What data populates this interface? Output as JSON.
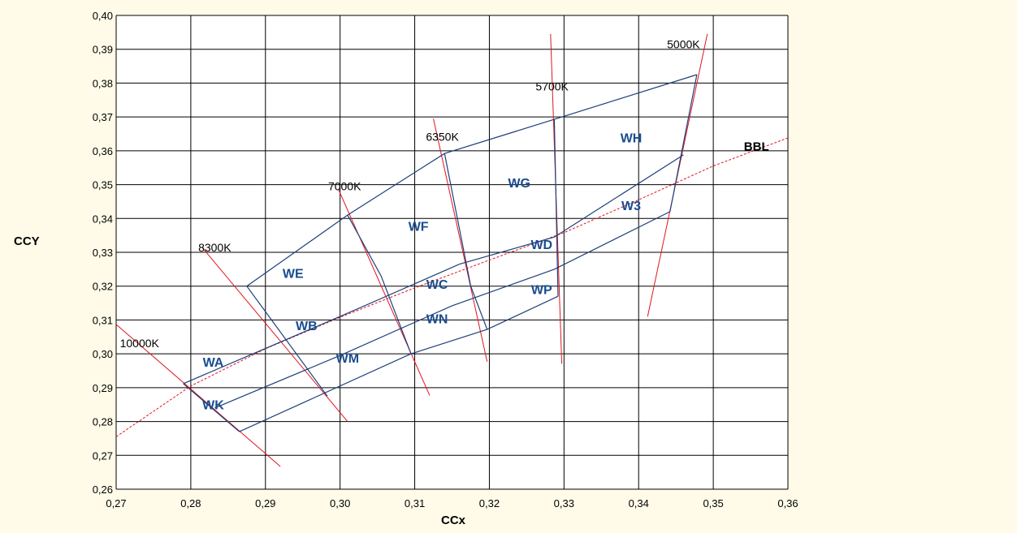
{
  "chart_data": {
    "type": "scatter",
    "xlabel": "CCx",
    "ylabel": "CCY",
    "xlim": [
      0.27,
      0.36
    ],
    "ylim": [
      0.26,
      0.4
    ],
    "grid": true,
    "x_ticks": [
      {
        "value": 0.27,
        "label": "0,27"
      },
      {
        "value": 0.28,
        "label": "0,28"
      },
      {
        "value": 0.29,
        "label": "0,29"
      },
      {
        "value": 0.3,
        "label": "0,30"
      },
      {
        "value": 0.31,
        "label": "0,31"
      },
      {
        "value": 0.32,
        "label": "0,32"
      },
      {
        "value": 0.33,
        "label": "0,33"
      },
      {
        "value": 0.34,
        "label": "0,34"
      },
      {
        "value": 0.35,
        "label": "0,35"
      },
      {
        "value": 0.36,
        "label": "0,36"
      }
    ],
    "y_ticks": [
      {
        "value": 0.26,
        "label": "0,26"
      },
      {
        "value": 0.27,
        "label": "0,27"
      },
      {
        "value": 0.28,
        "label": "0,28"
      },
      {
        "value": 0.29,
        "label": "0,29"
      },
      {
        "value": 0.3,
        "label": "0,30"
      },
      {
        "value": 0.31,
        "label": "0,31"
      },
      {
        "value": 0.32,
        "label": "0,32"
      },
      {
        "value": 0.33,
        "label": "0,33"
      },
      {
        "value": 0.34,
        "label": "0,34"
      },
      {
        "value": 0.35,
        "label": "0,35"
      },
      {
        "value": 0.36,
        "label": "0,36"
      },
      {
        "value": 0.37,
        "label": "0,37"
      },
      {
        "value": 0.38,
        "label": "0,38"
      },
      {
        "value": 0.39,
        "label": "0,39"
      },
      {
        "value": 0.4,
        "label": "0,40"
      }
    ],
    "colors": {
      "bins": "#1f3f7a",
      "isotherms": "#e0141e",
      "bin_text": "#1a4d8f",
      "grid": "#000000",
      "plot_bg": "#ffffff"
    },
    "bbl": {
      "label": "BBL",
      "label_at": [
        0.3541,
        0.3601
      ],
      "points": [
        [
          0.27,
          0.2755
        ],
        [
          0.28,
          0.2905
        ],
        [
          0.29,
          0.3015
        ],
        [
          0.3,
          0.3108
        ],
        [
          0.31,
          0.3195
        ],
        [
          0.32,
          0.3277
        ],
        [
          0.33,
          0.3358
        ],
        [
          0.34,
          0.3455
        ],
        [
          0.35,
          0.3555
        ],
        [
          0.36,
          0.3638
        ]
      ]
    },
    "isotherms": [
      {
        "label": "10000K",
        "label_at": [
          0.2705,
          0.3019
        ],
        "from": [
          0.27,
          0.3087
        ],
        "to": [
          0.292,
          0.2667
        ]
      },
      {
        "label": "8300K",
        "label_at": [
          0.281,
          0.3302
        ],
        "from": [
          0.2815,
          0.3315
        ],
        "to": [
          0.301,
          0.28
        ]
      },
      {
        "label": "7000K",
        "label_at": [
          0.2984,
          0.3483
        ],
        "from": [
          0.2998,
          0.3485
        ],
        "to": [
          0.312,
          0.2877
        ]
      },
      {
        "label": "6350K",
        "label_at": [
          0.3115,
          0.363
        ],
        "from": [
          0.3125,
          0.3695
        ],
        "to": [
          0.3197,
          0.2977
        ]
      },
      {
        "label": "5700K",
        "label_at": [
          0.3262,
          0.3778
        ],
        "from": [
          0.3282,
          0.3945
        ],
        "to": [
          0.3297,
          0.2971
        ]
      },
      {
        "label": "5000K",
        "label_at": [
          0.3438,
          0.3903
        ],
        "from": [
          0.3492,
          0.3945
        ],
        "to": [
          0.3412,
          0.311
        ]
      }
    ],
    "bin_lines": [
      [
        [
          0.279,
          0.2912
        ],
        [
          0.2865,
          0.277
        ]
      ],
      [
        [
          0.2875,
          0.32
        ],
        [
          0.2983,
          0.2875
        ]
      ],
      [
        [
          0.301,
          0.341
        ],
        [
          0.3055,
          0.323
        ],
        [
          0.3095,
          0.3
        ]
      ],
      [
        [
          0.314,
          0.3592
        ],
        [
          0.3175,
          0.32
        ],
        [
          0.3197,
          0.3072
        ]
      ],
      [
        [
          0.3287,
          0.3693
        ],
        [
          0.3292,
          0.317
        ]
      ],
      [
        [
          0.3478,
          0.3825
        ],
        [
          0.3442,
          0.342
        ]
      ],
      [
        [
          0.2875,
          0.32
        ],
        [
          0.301,
          0.341
        ],
        [
          0.314,
          0.3592
        ],
        [
          0.3287,
          0.3693
        ],
        [
          0.3478,
          0.3825
        ]
      ],
      [
        [
          0.279,
          0.2912
        ],
        [
          0.301,
          0.312
        ],
        [
          0.316,
          0.3265
        ],
        [
          0.3287,
          0.3345
        ],
        [
          0.346,
          0.3588
        ]
      ],
      [
        [
          0.2832,
          0.284
        ],
        [
          0.3,
          0.2995
        ],
        [
          0.315,
          0.3142
        ],
        [
          0.3287,
          0.325
        ],
        [
          0.3442,
          0.342
        ]
      ],
      [
        [
          0.2865,
          0.277
        ],
        [
          0.3095,
          0.3
        ],
        [
          0.3197,
          0.3072
        ],
        [
          0.3292,
          0.317
        ]
      ]
    ],
    "bins": [
      {
        "label": "WA",
        "at": [
          0.283,
          0.2962
        ]
      },
      {
        "label": "WK",
        "at": [
          0.283,
          0.2836
        ]
      },
      {
        "label": "WE",
        "at": [
          0.2937,
          0.3225
        ]
      },
      {
        "label": "WB",
        "at": [
          0.2955,
          0.307
        ]
      },
      {
        "label": "WM",
        "at": [
          0.301,
          0.2974
        ]
      },
      {
        "label": "WF",
        "at": [
          0.3105,
          0.3363
        ]
      },
      {
        "label": "WC",
        "at": [
          0.313,
          0.3192
        ]
      },
      {
        "label": "WN",
        "at": [
          0.313,
          0.309
        ]
      },
      {
        "label": "WG",
        "at": [
          0.324,
          0.3492
        ]
      },
      {
        "label": "WD",
        "at": [
          0.327,
          0.331
        ]
      },
      {
        "label": "WP",
        "at": [
          0.327,
          0.3177
        ]
      },
      {
        "label": "WH",
        "at": [
          0.339,
          0.3625
        ]
      },
      {
        "label": "W3",
        "at": [
          0.339,
          0.3425
        ]
      }
    ]
  }
}
